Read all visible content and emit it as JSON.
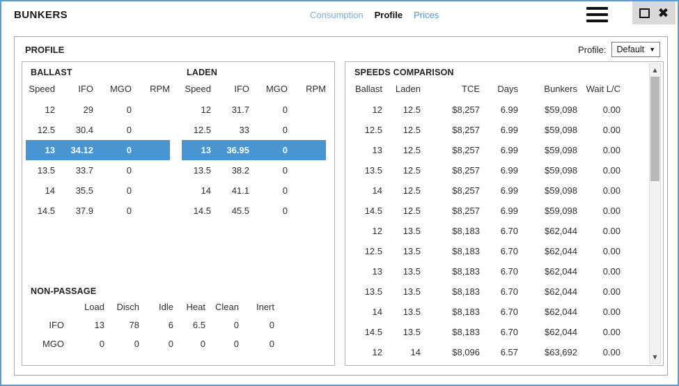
{
  "window": {
    "title": "BUNKERS",
    "tabs": [
      {
        "label": "Consumption",
        "active": false
      },
      {
        "label": "Profile",
        "active": true
      },
      {
        "label": "Prices",
        "active": false
      }
    ]
  },
  "profile_panel": {
    "title": "PROFILE",
    "profile_label": "Profile:",
    "profile_value": "Default",
    "dropdown_arrow": "▼"
  },
  "ballast": {
    "title": "BALLAST",
    "headers": [
      "Speed",
      "IFO",
      "MGO",
      "RPM"
    ],
    "rows": [
      [
        "12",
        "29",
        "0",
        ""
      ],
      [
        "12.5",
        "30.4",
        "0",
        ""
      ],
      [
        "13",
        "34.12",
        "0",
        ""
      ],
      [
        "13.5",
        "33.7",
        "0",
        ""
      ],
      [
        "14",
        "35.5",
        "0",
        ""
      ],
      [
        "14.5",
        "37.9",
        "0",
        ""
      ]
    ],
    "selected_index": 2
  },
  "laden": {
    "title": "LADEN",
    "headers": [
      "Speed",
      "IFO",
      "MGO",
      "RPM"
    ],
    "rows": [
      [
        "12",
        "31.7",
        "0",
        ""
      ],
      [
        "12.5",
        "33",
        "0",
        ""
      ],
      [
        "13",
        "36.95",
        "0",
        ""
      ],
      [
        "13.5",
        "38.2",
        "0",
        ""
      ],
      [
        "14",
        "41.1",
        "0",
        ""
      ],
      [
        "14.5",
        "45.5",
        "0",
        ""
      ]
    ],
    "selected_index": 2
  },
  "non_passage": {
    "title": "NON-PASSAGE",
    "headers": [
      "",
      "Load",
      "Disch",
      "Idle",
      "Heat",
      "Clean",
      "Inert"
    ],
    "rows": [
      [
        "IFO",
        "13",
        "78",
        "6",
        "6.5",
        "0",
        "0"
      ],
      [
        "MGO",
        "0",
        "0",
        "0",
        "0",
        "0",
        "0"
      ]
    ]
  },
  "speeds_comparison": {
    "title": "SPEEDS COMPARISON",
    "headers": [
      "Ballast",
      "Laden",
      "TCE",
      "Days",
      "Bunkers",
      "Wait L/C"
    ],
    "rows": [
      [
        "12",
        "12.5",
        "$8,257",
        "6.99",
        "$59,098",
        "0.00"
      ],
      [
        "12.5",
        "12.5",
        "$8,257",
        "6.99",
        "$59,098",
        "0.00"
      ],
      [
        "13",
        "12.5",
        "$8,257",
        "6.99",
        "$59,098",
        "0.00"
      ],
      [
        "13.5",
        "12.5",
        "$8,257",
        "6.99",
        "$59,098",
        "0.00"
      ],
      [
        "14",
        "12.5",
        "$8,257",
        "6.99",
        "$59,098",
        "0.00"
      ],
      [
        "14.5",
        "12.5",
        "$8,257",
        "6.99",
        "$59,098",
        "0.00"
      ],
      [
        "12",
        "13.5",
        "$8,183",
        "6.70",
        "$62,044",
        "0.00"
      ],
      [
        "12.5",
        "13.5",
        "$8,183",
        "6.70",
        "$62,044",
        "0.00"
      ],
      [
        "13",
        "13.5",
        "$8,183",
        "6.70",
        "$62,044",
        "0.00"
      ],
      [
        "13.5",
        "13.5",
        "$8,183",
        "6.70",
        "$62,044",
        "0.00"
      ],
      [
        "14",
        "13.5",
        "$8,183",
        "6.70",
        "$62,044",
        "0.00"
      ],
      [
        "14.5",
        "13.5",
        "$8,183",
        "6.70",
        "$62,044",
        "0.00"
      ],
      [
        "12",
        "14",
        "$8,096",
        "6.57",
        "$63,692",
        "0.00"
      ]
    ]
  },
  "scrollbar": {
    "up_glyph": "▲",
    "down_glyph": "▼"
  },
  "colors": {
    "selected_row": "#4796d3",
    "window_border": "#5b9bd5",
    "tab_link": "#4d97d9",
    "winbtn_bg": "#d9d9d9"
  }
}
